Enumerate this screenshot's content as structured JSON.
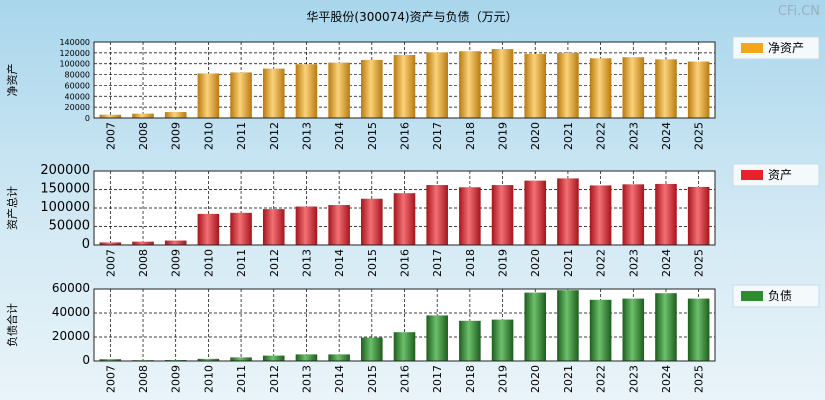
{
  "title": "华平股份(300074)资产与负债（万元）",
  "watermark": "CFi.CN",
  "chart_data": [
    {
      "type": "bar",
      "name": "net-assets",
      "ylabel": "净资产",
      "legend": "净资产",
      "color": "#f4a61a",
      "ylim": [
        0,
        140000
      ],
      "yticks": [
        0,
        20000,
        40000,
        60000,
        80000,
        100000,
        120000,
        140000
      ],
      "categories": [
        "2007",
        "2008",
        "2009",
        "2010",
        "2011",
        "2012",
        "2013",
        "2014",
        "2015",
        "2016",
        "2017",
        "2018",
        "2019",
        "2020",
        "2021",
        "2022",
        "2023",
        "2024",
        "2025"
      ],
      "values": [
        6000,
        8000,
        11000,
        82000,
        84000,
        91000,
        99000,
        102000,
        107000,
        116000,
        121000,
        123000,
        127000,
        118000,
        120000,
        110000,
        112000,
        108000,
        104000
      ]
    },
    {
      "type": "bar",
      "name": "total-assets",
      "ylabel": "资产总计",
      "legend": "资产",
      "color": "#e8212a",
      "ylim": [
        0,
        200000
      ],
      "yticks": [
        0,
        50000,
        100000,
        150000,
        200000
      ],
      "categories": [
        "2007",
        "2008",
        "2009",
        "2010",
        "2011",
        "2012",
        "2013",
        "2014",
        "2015",
        "2016",
        "2017",
        "2018",
        "2019",
        "2020",
        "2021",
        "2022",
        "2023",
        "2024",
        "2025"
      ],
      "values": [
        7000,
        9000,
        12000,
        84000,
        87000,
        97000,
        104000,
        108000,
        125000,
        140000,
        162000,
        156000,
        162000,
        174000,
        180000,
        161000,
        164000,
        165000,
        157000
      ]
    },
    {
      "type": "bar",
      "name": "total-liabilities",
      "ylabel": "负债合计",
      "legend": "负债",
      "color": "#2e8b2e",
      "ylim": [
        0,
        60000
      ],
      "yticks": [
        0,
        20000,
        40000,
        60000
      ],
      "categories": [
        "2007",
        "2008",
        "2009",
        "2010",
        "2011",
        "2012",
        "2013",
        "2014",
        "2015",
        "2016",
        "2017",
        "2018",
        "2019",
        "2020",
        "2021",
        "2022",
        "2023",
        "2024",
        "2025"
      ],
      "values": [
        1500,
        700,
        800,
        1800,
        3000,
        4500,
        5500,
        5500,
        19500,
        24000,
        38000,
        33500,
        34500,
        57000,
        59000,
        51000,
        52000,
        56500,
        52000
      ]
    }
  ]
}
